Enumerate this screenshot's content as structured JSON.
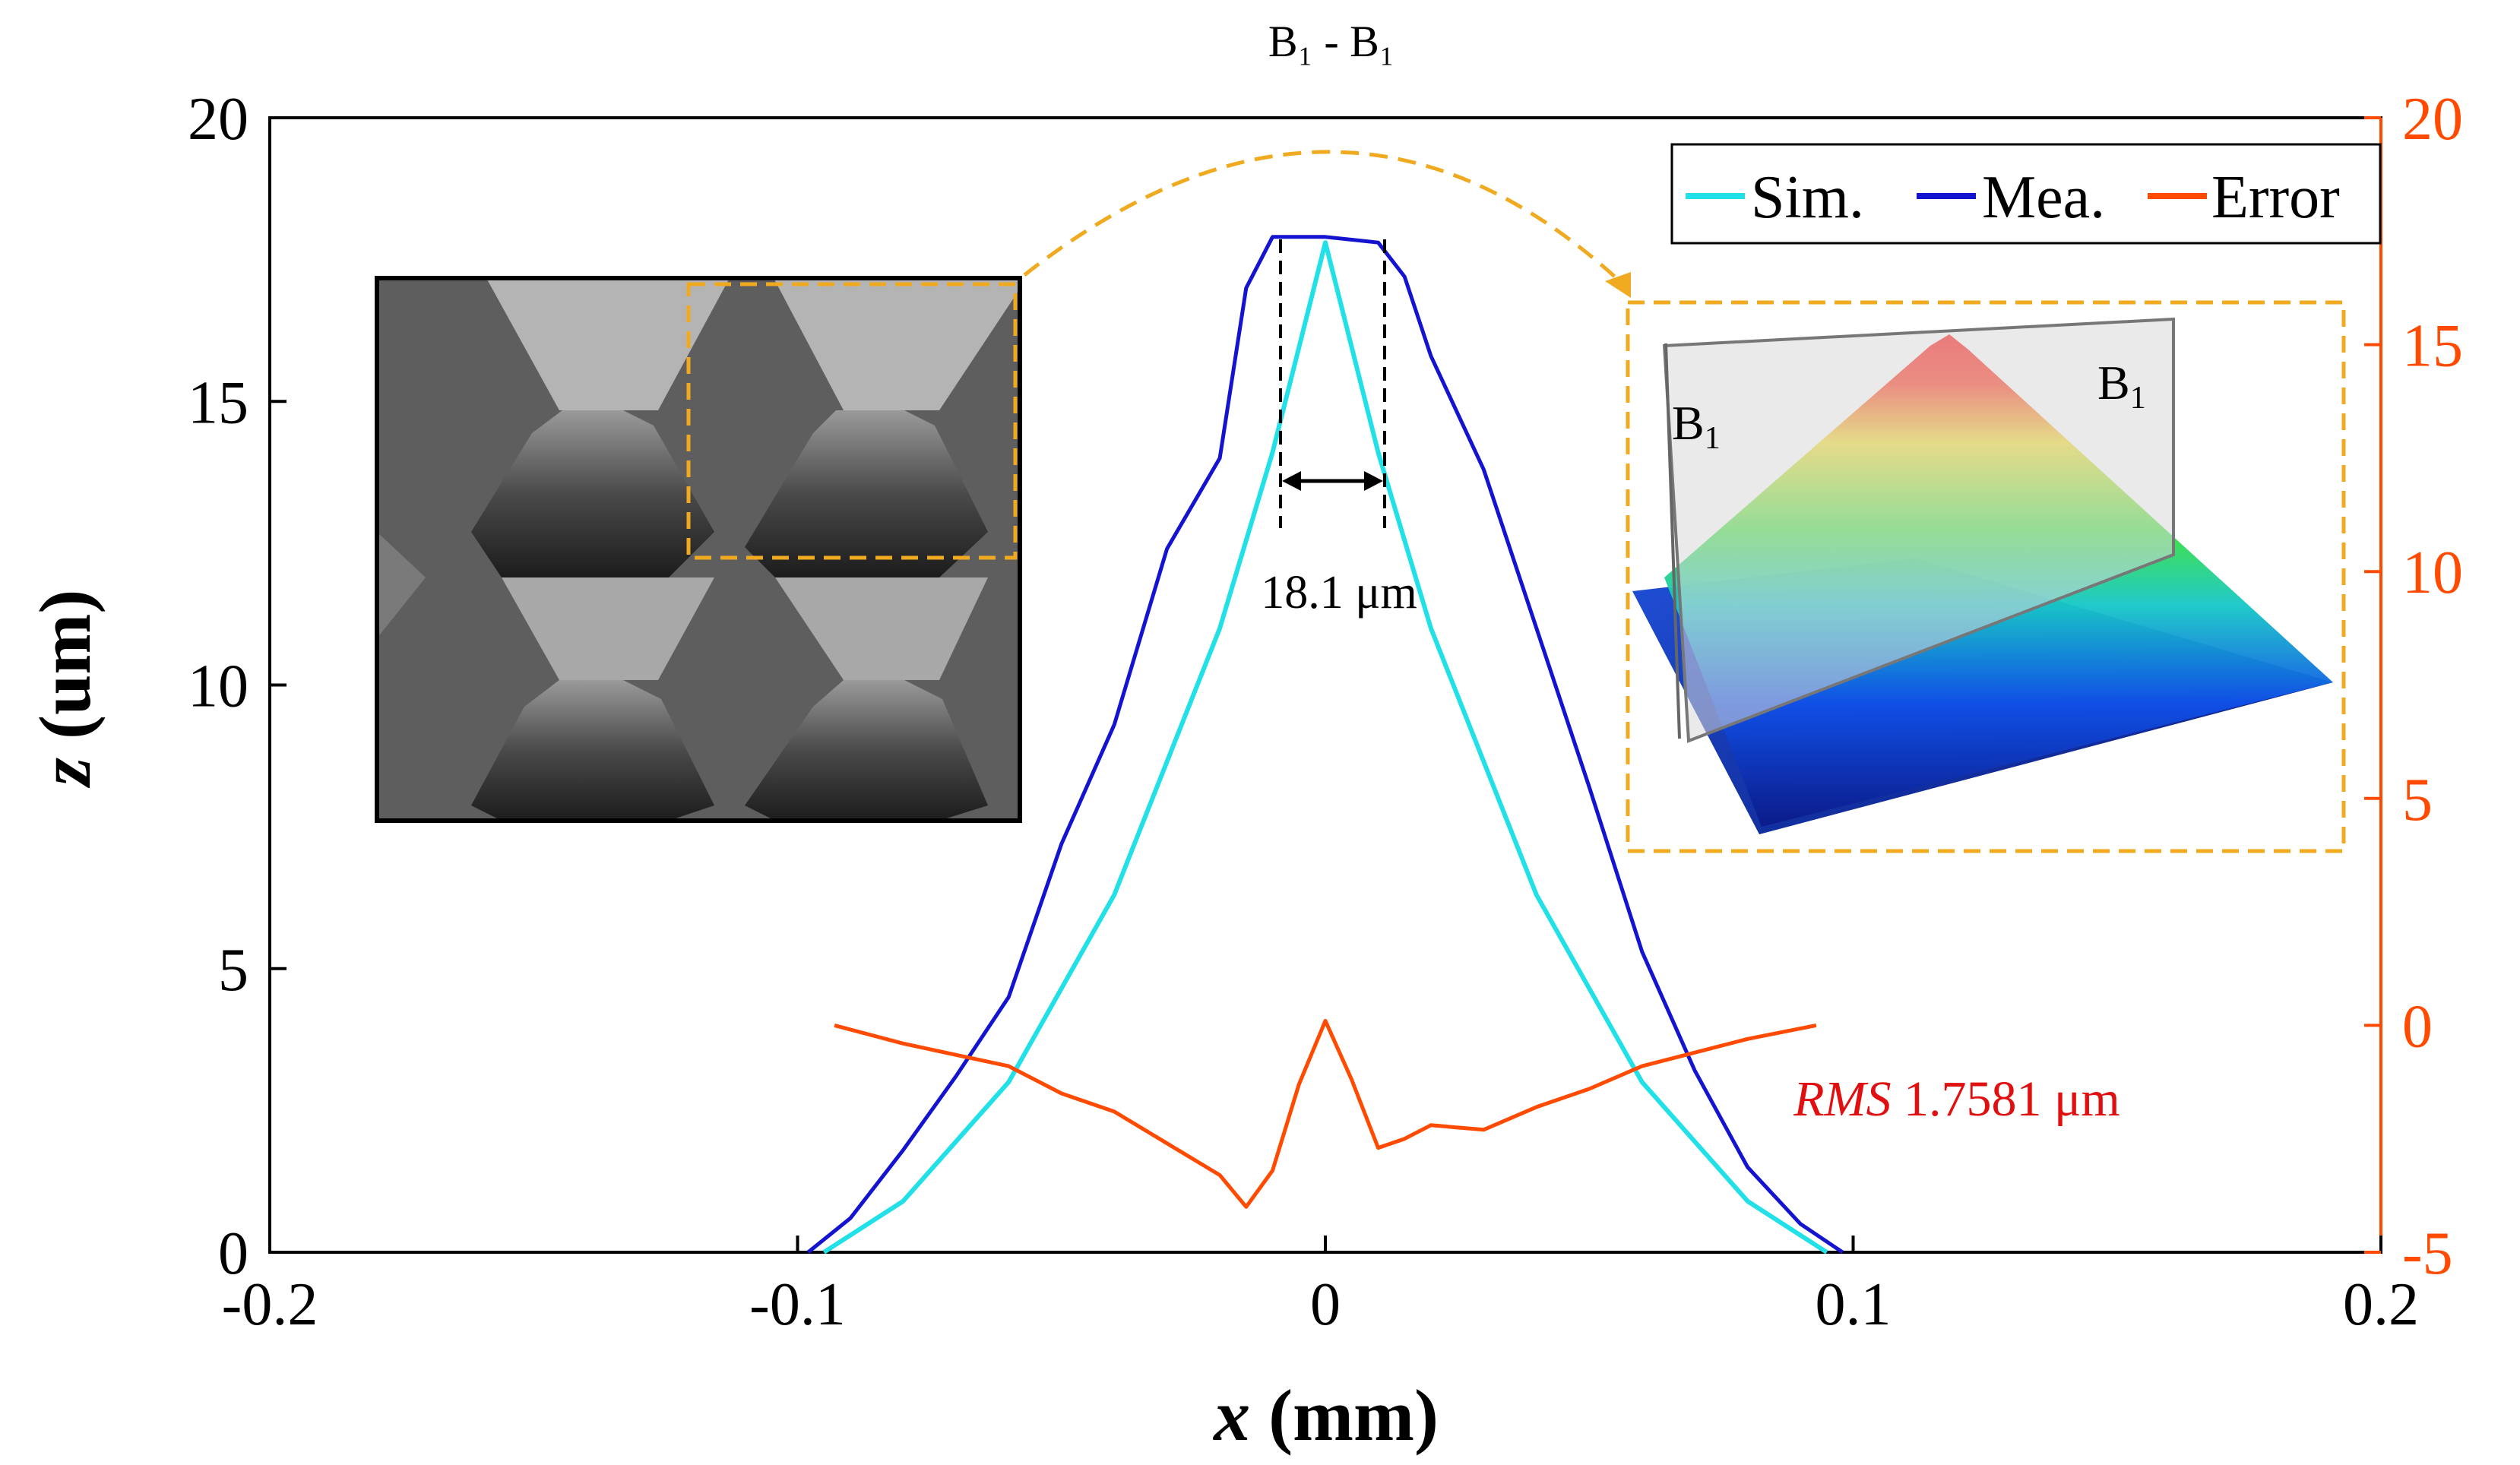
{
  "chart_data": {
    "type": "line",
    "title": "B₁ - B₁",
    "xlabel_var": "x",
    "xlabel_unit": "(mm)",
    "ylabel_var": "z",
    "ylabel_unit": "(um)",
    "xlim": [
      -0.2,
      0.2
    ],
    "ylim": [
      0,
      20
    ],
    "y2lim": [
      -5,
      20
    ],
    "x_ticks": [
      "-0.2",
      "-0.1",
      "0",
      "0.1",
      "0.2"
    ],
    "y_ticks": [
      "0",
      "5",
      "10",
      "15",
      "20"
    ],
    "y2_ticks": [
      "-5",
      "0",
      "5",
      "10",
      "15",
      "20"
    ],
    "legend": [
      "Sim.",
      "Mea.",
      "Error"
    ],
    "colors": {
      "sim": "#22e0e8",
      "mea": "#1414d0",
      "error": "#ff4a00",
      "axis_right": "#ff4a00",
      "rms": "#e01010",
      "inset_border": "#f0aa20"
    },
    "series": [
      {
        "name": "Sim.",
        "x": [
          -0.095,
          -0.08,
          -0.06,
          -0.04,
          -0.02,
          -0.01,
          0,
          0.01,
          0.02,
          0.04,
          0.06,
          0.08,
          0.095
        ],
        "values": [
          0,
          0.9,
          3.0,
          6.3,
          11.0,
          14.1,
          17.8,
          14.1,
          11.0,
          6.3,
          3.0,
          0.9,
          0
        ]
      },
      {
        "name": "Mea.",
        "x": [
          -0.098,
          -0.09,
          -0.08,
          -0.07,
          -0.06,
          -0.05,
          -0.04,
          -0.03,
          -0.02,
          -0.015,
          -0.01,
          0,
          0.01,
          0.015,
          0.02,
          0.03,
          0.04,
          0.05,
          0.06,
          0.07,
          0.08,
          0.09,
          0.098
        ],
        "values": [
          0,
          0.6,
          1.8,
          3.1,
          4.5,
          7.2,
          9.3,
          12.4,
          14.0,
          17.0,
          17.9,
          17.9,
          17.8,
          17.2,
          15.8,
          13.8,
          11.0,
          8.2,
          5.3,
          3.2,
          1.5,
          0.5,
          0
        ]
      },
      {
        "name": "Error",
        "axis": "right",
        "x": [
          -0.093,
          -0.08,
          -0.06,
          -0.05,
          -0.04,
          -0.03,
          -0.02,
          -0.015,
          -0.01,
          -0.005,
          0,
          0.005,
          0.01,
          0.015,
          0.02,
          0.03,
          0.04,
          0.05,
          0.06,
          0.07,
          0.08,
          0.093
        ],
        "values": [
          0,
          -0.4,
          -0.9,
          -1.5,
          -1.9,
          -2.6,
          -3.3,
          -4.0,
          -3.2,
          -1.3,
          0.1,
          -1.2,
          -2.7,
          -2.5,
          -2.2,
          -2.3,
          -1.8,
          -1.4,
          -0.9,
          -0.6,
          -0.3,
          0
        ]
      }
    ],
    "annotations": {
      "width": "18.1 μm",
      "rms_label": "RMS",
      "rms_value": "1.7581 μm",
      "b_left": "B",
      "b_right": "B",
      "b_sub": "1"
    }
  }
}
